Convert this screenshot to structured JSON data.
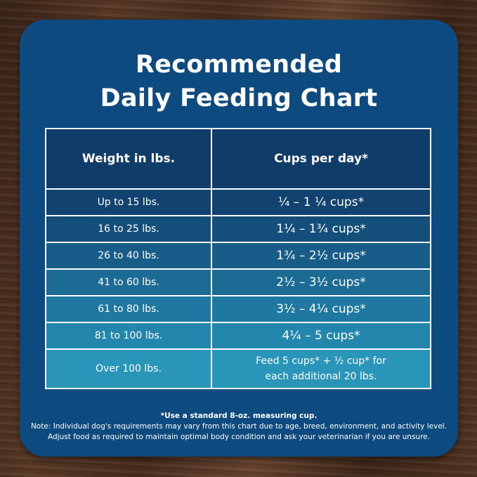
{
  "title_lines": [
    "Recommended",
    "Daily Feeding Chart"
  ],
  "table": {
    "headers": [
      "Weight in lbs.",
      "Cups per day*"
    ],
    "rows": [
      {
        "weight": "Up to 15 lbs.",
        "cups": "¼ – 1 ¼ cups*",
        "color": "#114270"
      },
      {
        "weight": "16 to 25 lbs.",
        "cups": "1¼ – 1¾  cups*",
        "color": "#144f7c"
      },
      {
        "weight": "26 to 40 lbs.",
        "cups": "1¾ – 2½ cups*",
        "color": "#185d89"
      },
      {
        "weight": "41 to 60 lbs.",
        "cups": "2½ – 3½ cups*",
        "color": "#1c6b95"
      },
      {
        "weight": "61 to 80 lbs.",
        "cups": "3½ – 4¼ cups*",
        "color": "#1f78a1"
      },
      {
        "weight": "81 to 100 lbs.",
        "cups": "4¼ – 5 cups*",
        "color": "#2386ac"
      },
      {
        "weight": "Over 100 lbs.",
        "cups_lines": [
          "Feed 5 cups* + ½ cup* for",
          "each additional 20 lbs."
        ],
        "color": "#2995b9"
      }
    ]
  },
  "notes": {
    "footnote": "*Use a standard 8-oz. measuring cup.",
    "line1": "Note: Individual dog's requirements may vary from this chart due to age, breed, environment, and activity level.",
    "line2": "Adjust food as required to maintain optimal body condition and ask your veterinarian if you are unsure."
  }
}
